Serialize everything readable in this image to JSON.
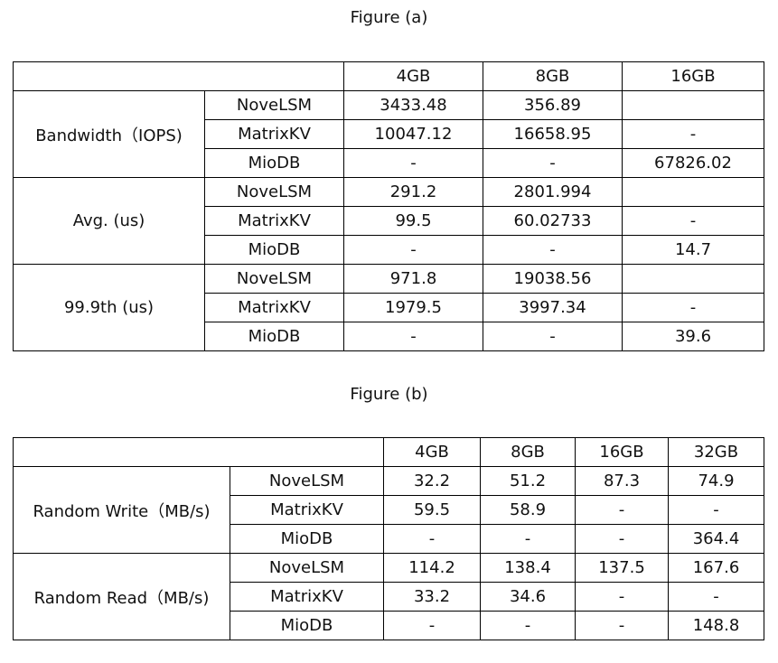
{
  "chart_data": [
    {
      "type": "table",
      "title": "Figure (a)",
      "columns": [
        "4GB",
        "8GB",
        "16GB"
      ],
      "groups": [
        {
          "metric": "Bandwidth（IOPS)",
          "rows": [
            {
              "system": "NoveLSM",
              "values": [
                "3433.48",
                "356.89",
                ""
              ]
            },
            {
              "system": "MatrixKV",
              "values": [
                "10047.12",
                "16658.95",
                "-"
              ]
            },
            {
              "system": "MioDB",
              "values": [
                "-",
                "-",
                "67826.02"
              ]
            }
          ]
        },
        {
          "metric": "Avg. (us)",
          "rows": [
            {
              "system": "NoveLSM",
              "values": [
                "291.2",
                "2801.994",
                ""
              ]
            },
            {
              "system": "MatrixKV",
              "values": [
                "99.5",
                "60.02733",
                "-"
              ]
            },
            {
              "system": "MioDB",
              "values": [
                "-",
                "-",
                "14.7"
              ]
            }
          ]
        },
        {
          "metric": "99.9th (us)",
          "rows": [
            {
              "system": "NoveLSM",
              "values": [
                "971.8",
                "19038.56",
                ""
              ]
            },
            {
              "system": "MatrixKV",
              "values": [
                "1979.5",
                "3997.34",
                "-"
              ]
            },
            {
              "system": "MioDB",
              "values": [
                "-",
                "-",
                "39.6"
              ]
            }
          ]
        }
      ]
    },
    {
      "type": "table",
      "title": "Figure (b)",
      "columns": [
        "4GB",
        "8GB",
        "16GB",
        "32GB"
      ],
      "groups": [
        {
          "metric": "Random Write（MB/s)",
          "rows": [
            {
              "system": "NoveLSM",
              "values": [
                "32.2",
                "51.2",
                "87.3",
                "74.9"
              ]
            },
            {
              "system": "MatrixKV",
              "values": [
                "59.5",
                "58.9",
                "-",
                "-"
              ]
            },
            {
              "system": "MioDB",
              "values": [
                "-",
                "-",
                "-",
                "364.4"
              ]
            }
          ]
        },
        {
          "metric": "Random Read（MB/s)",
          "rows": [
            {
              "system": "NoveLSM",
              "values": [
                "114.2",
                "138.4",
                "137.5",
                "167.6"
              ]
            },
            {
              "system": "MatrixKV",
              "values": [
                "33.2",
                "34.6",
                "-",
                "-"
              ]
            },
            {
              "system": "MioDB",
              "values": [
                "-",
                "-",
                "-",
                "148.8"
              ]
            }
          ]
        }
      ]
    }
  ]
}
